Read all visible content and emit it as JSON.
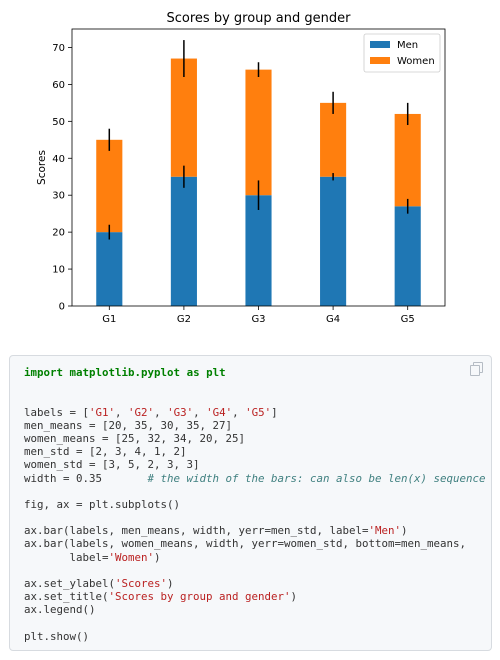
{
  "chart_data": {
    "type": "bar",
    "stacked": true,
    "title": "Scores by group and gender",
    "xlabel": "",
    "ylabel": "Scores",
    "categories": [
      "G1",
      "G2",
      "G3",
      "G4",
      "G5"
    ],
    "series": [
      {
        "name": "Men",
        "values": [
          20,
          35,
          30,
          35,
          27
        ],
        "errors": [
          2,
          3,
          4,
          1,
          2
        ],
        "color": "#1f77b4"
      },
      {
        "name": "Women",
        "values": [
          25,
          32,
          34,
          20,
          25
        ],
        "errors": [
          3,
          5,
          2,
          3,
          3
        ],
        "color": "#ff7f0e"
      }
    ],
    "ylim": [
      0,
      75
    ],
    "yticks": [
      0,
      10,
      20,
      30,
      40,
      50,
      60,
      70
    ],
    "bar_width": 0.35,
    "grid": false,
    "legend_position": "top-right"
  },
  "code_block": {
    "copy_icon": "copy-icon",
    "lines": [
      [
        {
          "t": "import",
          "c": "kw"
        },
        {
          "t": " ",
          "c": "plain"
        },
        {
          "t": "matplotlib.pyplot",
          "c": "kw"
        },
        {
          "t": " ",
          "c": "plain"
        },
        {
          "t": "as",
          "c": "kw"
        },
        {
          "t": " ",
          "c": "plain"
        },
        {
          "t": "plt",
          "c": "kw"
        }
      ],
      [],
      [],
      [
        {
          "t": "labels = [",
          "c": "plain"
        },
        {
          "t": "'G1'",
          "c": "str"
        },
        {
          "t": ", ",
          "c": "plain"
        },
        {
          "t": "'G2'",
          "c": "str"
        },
        {
          "t": ", ",
          "c": "plain"
        },
        {
          "t": "'G3'",
          "c": "str"
        },
        {
          "t": ", ",
          "c": "plain"
        },
        {
          "t": "'G4'",
          "c": "str"
        },
        {
          "t": ", ",
          "c": "plain"
        },
        {
          "t": "'G5'",
          "c": "str"
        },
        {
          "t": "]",
          "c": "plain"
        }
      ],
      [
        {
          "t": "men_means = [20, 35, 30, 35, 27]",
          "c": "plain"
        }
      ],
      [
        {
          "t": "women_means = [25, 32, 34, 20, 25]",
          "c": "plain"
        }
      ],
      [
        {
          "t": "men_std = [2, 3, 4, 1, 2]",
          "c": "plain"
        }
      ],
      [
        {
          "t": "women_std = [3, 5, 2, 3, 3]",
          "c": "plain"
        }
      ],
      [
        {
          "t": "width = 0.35       ",
          "c": "plain"
        },
        {
          "t": "# the width of the bars: can also be len(x) sequence",
          "c": "com"
        }
      ],
      [],
      [
        {
          "t": "fig, ax = plt.subplots()",
          "c": "plain"
        }
      ],
      [],
      [
        {
          "t": "ax.bar(labels, men_means, width, yerr=men_std, label=",
          "c": "plain"
        },
        {
          "t": "'Men'",
          "c": "str"
        },
        {
          "t": ")",
          "c": "plain"
        }
      ],
      [
        {
          "t": "ax.bar(labels, women_means, width, yerr=women_std, bottom=men_means,",
          "c": "plain"
        }
      ],
      [
        {
          "t": "       label=",
          "c": "plain"
        },
        {
          "t": "'Women'",
          "c": "str"
        },
        {
          "t": ")",
          "c": "plain"
        }
      ],
      [],
      [
        {
          "t": "ax.set_ylabel(",
          "c": "plain"
        },
        {
          "t": "'Scores'",
          "c": "str"
        },
        {
          "t": ")",
          "c": "plain"
        }
      ],
      [
        {
          "t": "ax.set_title(",
          "c": "plain"
        },
        {
          "t": "'Scores by group and gender'",
          "c": "str"
        },
        {
          "t": ")",
          "c": "plain"
        }
      ],
      [
        {
          "t": "ax.legend()",
          "c": "plain"
        }
      ],
      [],
      [
        {
          "t": "plt.show()",
          "c": "plain"
        }
      ]
    ]
  }
}
